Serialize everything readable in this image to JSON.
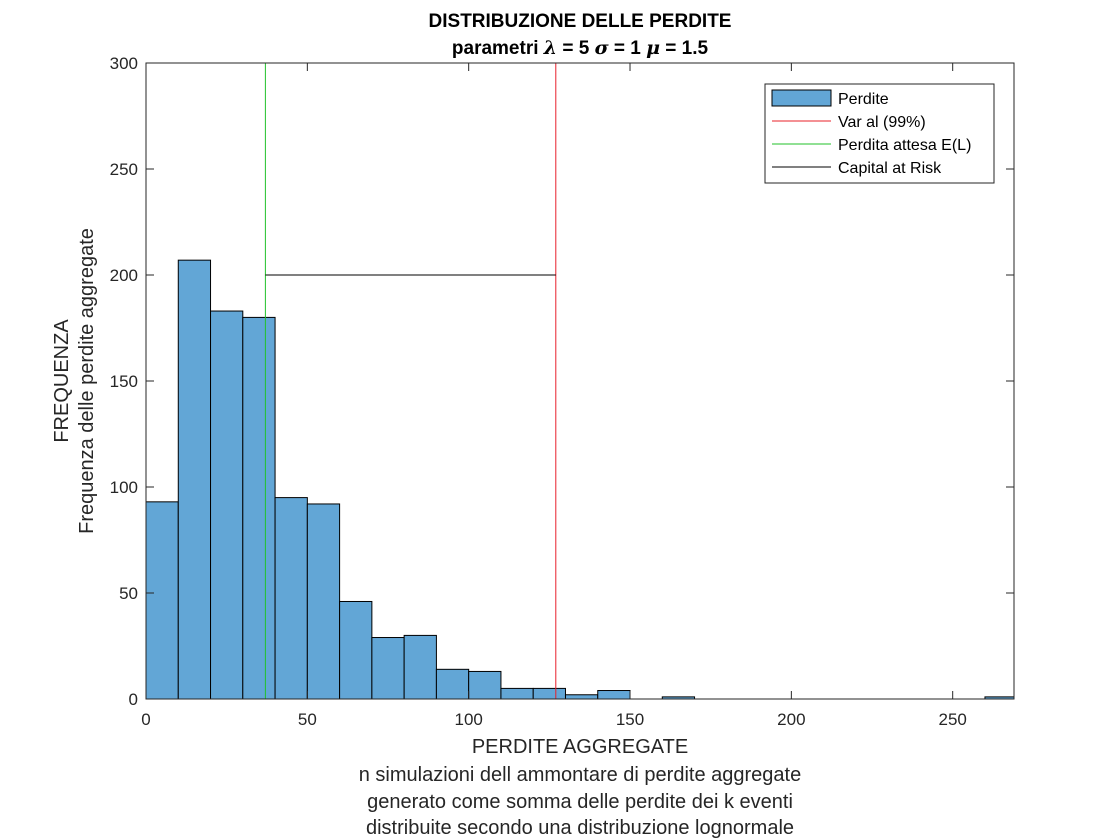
{
  "chart_data": {
    "type": "bar",
    "title": "DISTRIBUZIONE DELLE PERDITE",
    "subtitle": {
      "prefix": "parametri ",
      "lambda_symbol": "λ",
      "lambda_text": " = 5 ",
      "sigma_symbol": "σ",
      "sigma_text": " = 1 ",
      "mu_symbol": "μ",
      "mu_text": " = 1.5"
    },
    "xlabel": [
      "PERDITE AGGREGATE",
      "n simulazioni dell ammontare di perdite aggregate",
      "generato come somma delle perdite dei k eventi",
      "distribuite secondo una distribuzione lognormale"
    ],
    "ylabel": [
      "FREQUENZA",
      "Frequenza delle perdite aggregate"
    ],
    "xlim": [
      0,
      269
    ],
    "ylim": [
      0,
      300
    ],
    "xticks": [
      0,
      50,
      100,
      150,
      200,
      250
    ],
    "yticks": [
      0,
      50,
      100,
      150,
      200,
      250,
      300
    ],
    "grid": false,
    "legend_position": "top-right",
    "bins": [
      {
        "x0": 0,
        "x1": 10,
        "count": 93
      },
      {
        "x0": 10,
        "x1": 20,
        "count": 207
      },
      {
        "x0": 20,
        "x1": 30,
        "count": 183
      },
      {
        "x0": 30,
        "x1": 40,
        "count": 180
      },
      {
        "x0": 40,
        "x1": 50,
        "count": 95
      },
      {
        "x0": 50,
        "x1": 60,
        "count": 92
      },
      {
        "x0": 60,
        "x1": 70,
        "count": 46
      },
      {
        "x0": 70,
        "x1": 80,
        "count": 29
      },
      {
        "x0": 80,
        "x1": 90,
        "count": 30
      },
      {
        "x0": 90,
        "x1": 100,
        "count": 14
      },
      {
        "x0": 100,
        "x1": 110,
        "count": 13
      },
      {
        "x0": 110,
        "x1": 120,
        "count": 5
      },
      {
        "x0": 120,
        "x1": 130,
        "count": 5
      },
      {
        "x0": 130,
        "x1": 140,
        "count": 2
      },
      {
        "x0": 140,
        "x1": 150,
        "count": 4
      },
      {
        "x0": 160,
        "x1": 170,
        "count": 1
      },
      {
        "x0": 260,
        "x1": 270,
        "count": 1
      }
    ],
    "series": [
      {
        "name": "Perdite",
        "kind": "histogram",
        "color": "#62a6d6"
      },
      {
        "name": "Var al (99%)",
        "kind": "vline",
        "x": 127,
        "color": "#e8202a"
      },
      {
        "name": "Perdita attesa E(L)",
        "kind": "vline",
        "x": 37,
        "color": "#22c22a"
      },
      {
        "name": "Capital at Risk",
        "kind": "hline",
        "x_from": 37,
        "x_to": 127,
        "y": 200,
        "color": "#000000"
      }
    ]
  }
}
